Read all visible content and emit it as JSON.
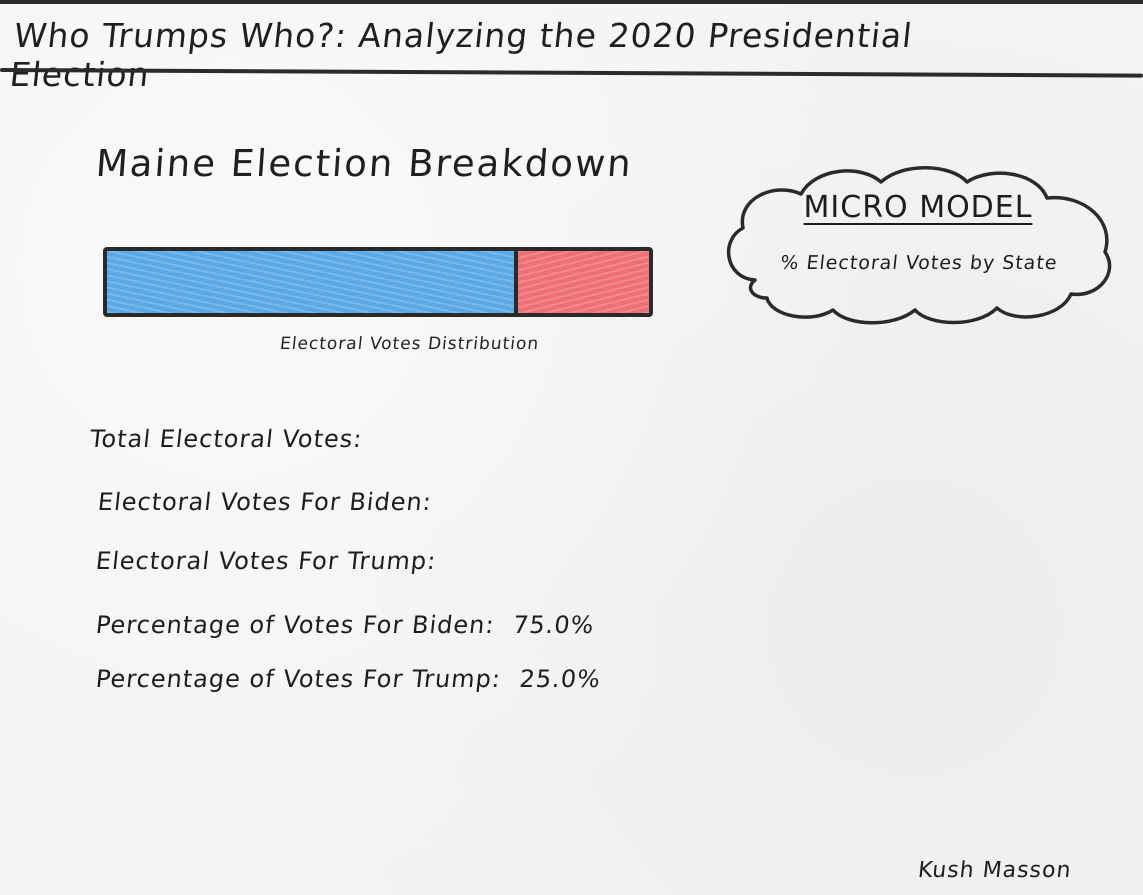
{
  "header": {
    "title": "Who Trumps Who?: Analyzing the 2020 Presidential Election"
  },
  "breakdown": {
    "title": "Maine Election Breakdown",
    "bar_caption": "Electoral Votes Distribution",
    "biden_share": 0.75,
    "trump_share": 0.25,
    "colors": {
      "biden": "#5aa8e6",
      "trump": "#ee6f74"
    }
  },
  "model_cloud": {
    "title": "MICRO MODEL",
    "subtitle": "% Electoral Votes by State"
  },
  "stats": {
    "total_electoral_votes_label": "Total Electoral Votes:",
    "biden_electoral_votes_label": "Electoral Votes For Biden:",
    "trump_electoral_votes_label": "Electoral Votes For Trump:",
    "biden_percentage_label": "Percentage of Votes For Biden:",
    "biden_percentage_value": "75.0%",
    "trump_percentage_label": "Percentage of Votes For Trump:",
    "trump_percentage_value": "25.0%"
  },
  "footer": {
    "author": "Kush Masson"
  }
}
